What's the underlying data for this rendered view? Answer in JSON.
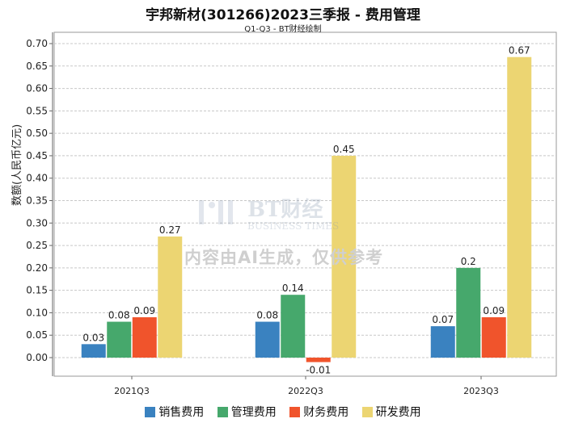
{
  "chart_data": {
    "type": "bar",
    "title": "宇邦新材(301266)2023三季报 - 费用管理",
    "subtitle": "Q1-Q3 - BT财经绘制",
    "xlabel": "",
    "ylabel": "数额(人民币亿元)",
    "ylim": [
      -0.04,
      0.72
    ],
    "yticks": [
      0.0,
      0.05,
      0.1,
      0.15,
      0.2,
      0.25,
      0.3,
      0.35,
      0.4,
      0.45,
      0.5,
      0.55,
      0.6,
      0.65,
      0.7
    ],
    "ytick_labels": [
      "0.00",
      "0.05",
      "0.10",
      "0.15",
      "0.20",
      "0.25",
      "0.30",
      "0.35",
      "0.40",
      "0.45",
      "0.50",
      "0.55",
      "0.60",
      "0.65",
      "0.70"
    ],
    "categories": [
      "2021Q3",
      "2022Q3",
      "2023Q3"
    ],
    "series": [
      {
        "name": "销售费用",
        "color": "#3a82c0",
        "values": [
          0.03,
          0.08,
          0.07
        ],
        "labels": [
          "0.03",
          "0.08",
          "0.07"
        ]
      },
      {
        "name": "管理费用",
        "color": "#46a86c",
        "values": [
          0.08,
          0.14,
          0.2
        ],
        "labels": [
          "0.08",
          "0.14",
          "0.2"
        ]
      },
      {
        "name": "财务费用",
        "color": "#f0542c",
        "values": [
          0.09,
          -0.01,
          0.09
        ],
        "labels": [
          "0.09",
          "-0.01",
          "0.09"
        ]
      },
      {
        "name": "研发费用",
        "color": "#ecd572",
        "values": [
          0.27,
          0.45,
          0.67
        ],
        "labels": [
          "0.27",
          "0.45",
          "0.67"
        ]
      }
    ],
    "grid": true,
    "legend": "bottom"
  },
  "watermark": {
    "brand": "BT财经",
    "brand_en": "BUSINESS TIMES",
    "notice": "内容由AI生成，仅供参考"
  }
}
